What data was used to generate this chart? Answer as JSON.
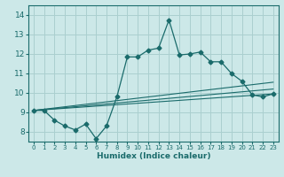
{
  "xlabel": "Humidex (Indice chaleur)",
  "background_color": "#cce8e8",
  "grid_color": "#aacfcf",
  "line_color": "#1a6b6b",
  "xlim": [
    -0.5,
    23.5
  ],
  "ylim": [
    7.5,
    14.5
  ],
  "xticks": [
    0,
    1,
    2,
    3,
    4,
    5,
    6,
    7,
    8,
    9,
    10,
    11,
    12,
    13,
    14,
    15,
    16,
    17,
    18,
    19,
    20,
    21,
    22,
    23
  ],
  "yticks": [
    8,
    9,
    10,
    11,
    12,
    13,
    14
  ],
  "main_series_x": [
    0,
    1,
    2,
    3,
    4,
    5,
    6,
    7,
    8,
    9,
    10,
    11,
    12,
    13,
    14,
    15,
    16,
    17,
    18,
    19,
    20,
    21,
    22,
    23
  ],
  "main_series_y": [
    9.1,
    9.1,
    8.6,
    8.3,
    8.1,
    8.4,
    7.65,
    8.3,
    9.8,
    11.85,
    11.85,
    12.2,
    12.3,
    13.75,
    11.95,
    12.0,
    12.1,
    11.6,
    11.6,
    11.0,
    10.6,
    9.9,
    9.8,
    9.95
  ],
  "line1_x": [
    0,
    23
  ],
  "line1_y": [
    9.1,
    9.95
  ],
  "line2_x": [
    0,
    23
  ],
  "line2_y": [
    9.1,
    10.2
  ],
  "line3_x": [
    0,
    23
  ],
  "line3_y": [
    9.1,
    10.55
  ]
}
